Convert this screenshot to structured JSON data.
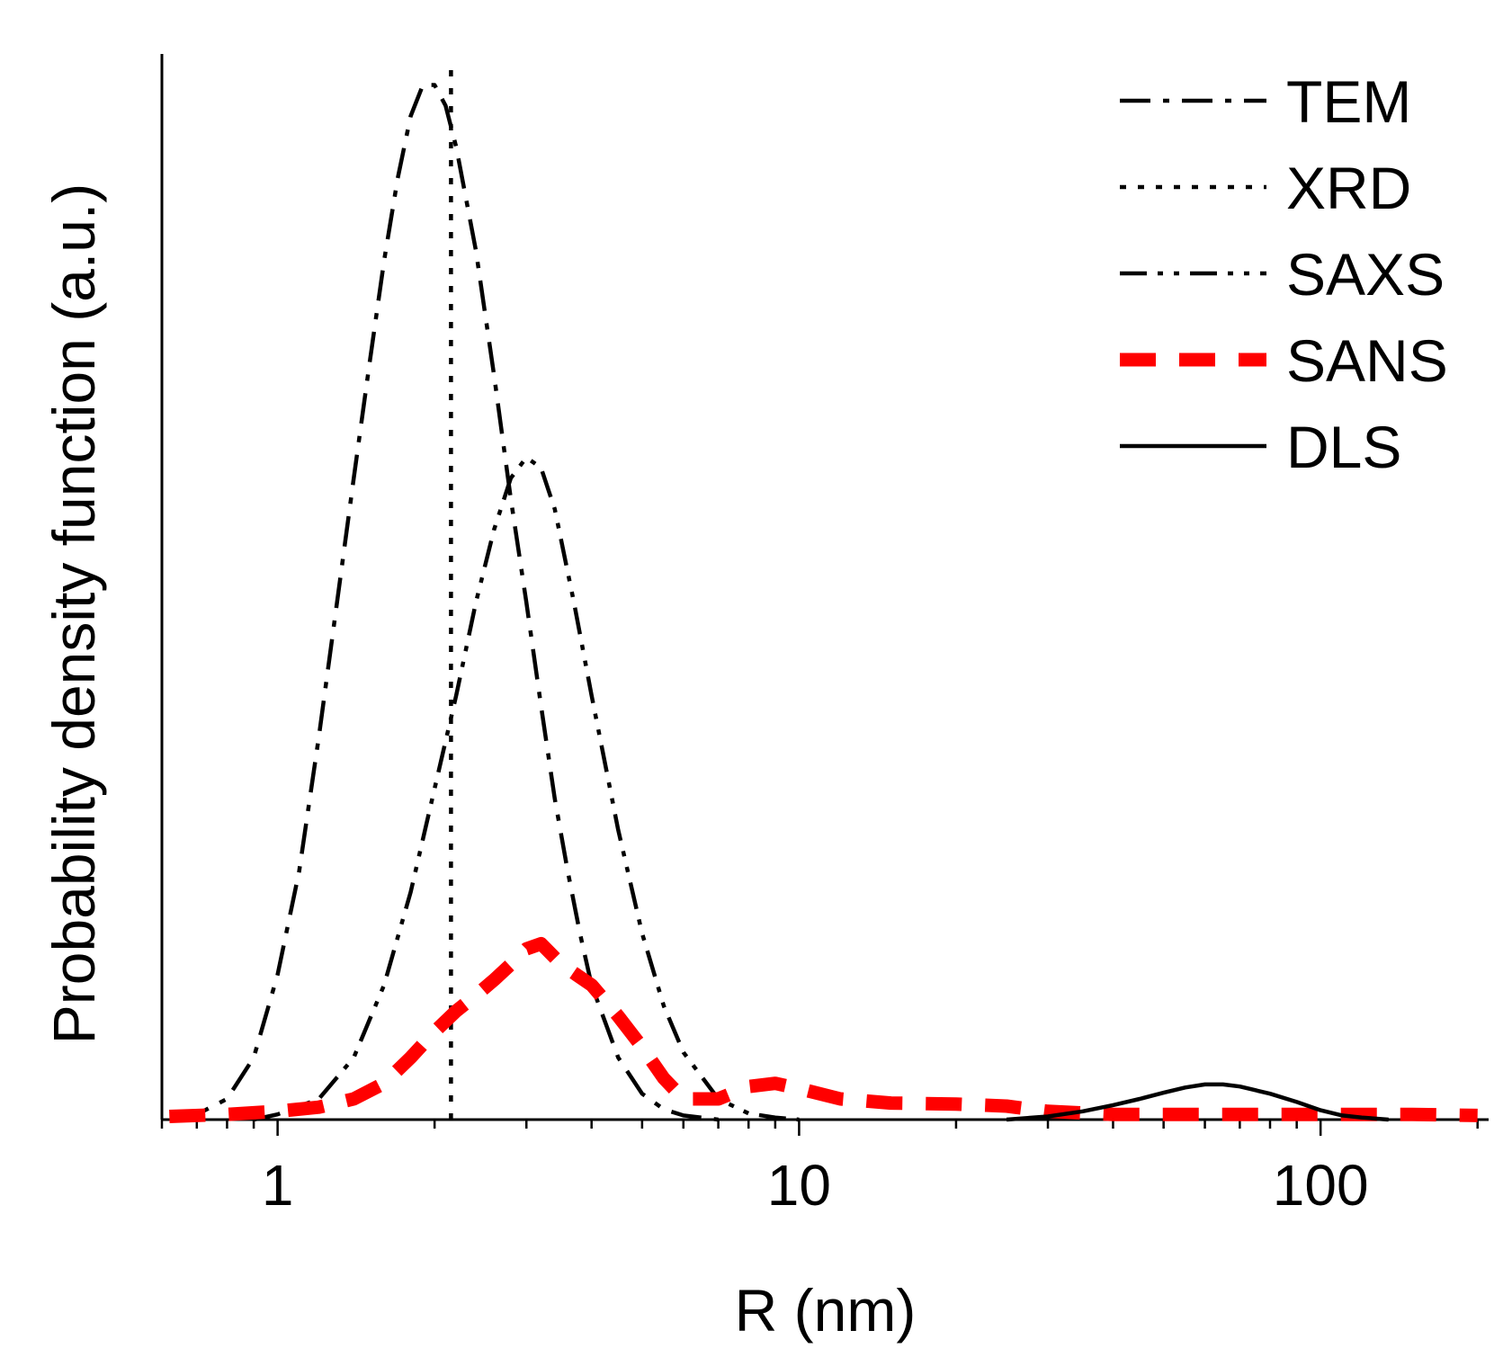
{
  "chart_data": {
    "type": "line",
    "title": "",
    "xlabel": "R (nm)",
    "ylabel": "Probability density function (a.u.)",
    "xscale": "log",
    "xlim": [
      0.6,
      210
    ],
    "ylim": [
      0,
      1.03
    ],
    "grid": false,
    "legend_position": "top-right",
    "x_ticks": [
      {
        "value": 1,
        "label": "1"
      },
      {
        "value": 10,
        "label": "10"
      },
      {
        "value": 100,
        "label": "100"
      }
    ],
    "series": [
      {
        "name": "TEM",
        "style": "dash-dot",
        "color": "#000000",
        "points": [
          [
            0.65,
            0.0
          ],
          [
            0.7,
            0.005
          ],
          [
            0.8,
            0.02
          ],
          [
            0.9,
            0.06
          ],
          [
            1.0,
            0.14
          ],
          [
            1.1,
            0.24
          ],
          [
            1.2,
            0.37
          ],
          [
            1.3,
            0.5
          ],
          [
            1.4,
            0.62
          ],
          [
            1.5,
            0.73
          ],
          [
            1.6,
            0.83
          ],
          [
            1.7,
            0.91
          ],
          [
            1.8,
            0.97
          ],
          [
            1.9,
            1.0
          ],
          [
            2.0,
            1.0
          ],
          [
            2.1,
            0.98
          ],
          [
            2.2,
            0.94
          ],
          [
            2.4,
            0.84
          ],
          [
            2.6,
            0.72
          ],
          [
            2.8,
            0.6
          ],
          [
            3.0,
            0.5
          ],
          [
            3.2,
            0.4
          ],
          [
            3.4,
            0.31
          ],
          [
            3.6,
            0.24
          ],
          [
            3.8,
            0.18
          ],
          [
            4.0,
            0.13
          ],
          [
            4.5,
            0.06
          ],
          [
            5.0,
            0.025
          ],
          [
            5.5,
            0.01
          ],
          [
            6.0,
            0.004
          ],
          [
            7.0,
            0.0
          ]
        ]
      },
      {
        "name": "XRD",
        "style": "dotted",
        "color": "#000000",
        "points": [
          [
            2.15,
            0.0
          ],
          [
            2.15,
            1.02
          ]
        ]
      },
      {
        "name": "SAXS",
        "style": "dash-dot-dot",
        "color": "#000000",
        "points": [
          [
            0.9,
            0.0
          ],
          [
            1.0,
            0.005
          ],
          [
            1.2,
            0.02
          ],
          [
            1.4,
            0.06
          ],
          [
            1.6,
            0.13
          ],
          [
            1.8,
            0.22
          ],
          [
            2.0,
            0.32
          ],
          [
            2.2,
            0.41
          ],
          [
            2.4,
            0.5
          ],
          [
            2.6,
            0.57
          ],
          [
            2.8,
            0.62
          ],
          [
            3.0,
            0.64
          ],
          [
            3.2,
            0.63
          ],
          [
            3.4,
            0.59
          ],
          [
            3.7,
            0.5
          ],
          [
            4.0,
            0.41
          ],
          [
            4.5,
            0.28
          ],
          [
            5.0,
            0.18
          ],
          [
            5.5,
            0.11
          ],
          [
            6.0,
            0.065
          ],
          [
            7.0,
            0.02
          ],
          [
            8.0,
            0.006
          ],
          [
            9.0,
            0.002
          ],
          [
            10.0,
            0.0
          ]
        ]
      },
      {
        "name": "SANS",
        "style": "dashed",
        "color": "#ff0000",
        "points": [
          [
            0.62,
            0.003
          ],
          [
            0.8,
            0.005
          ],
          [
            1.0,
            0.008
          ],
          [
            1.2,
            0.012
          ],
          [
            1.4,
            0.02
          ],
          [
            1.6,
            0.035
          ],
          [
            1.8,
            0.06
          ],
          [
            2.0,
            0.085
          ],
          [
            2.2,
            0.105
          ],
          [
            2.4,
            0.12
          ],
          [
            2.6,
            0.135
          ],
          [
            2.8,
            0.15
          ],
          [
            3.0,
            0.165
          ],
          [
            3.2,
            0.17
          ],
          [
            3.5,
            0.15
          ],
          [
            4.0,
            0.13
          ],
          [
            4.5,
            0.1
          ],
          [
            5.0,
            0.07
          ],
          [
            5.5,
            0.04
          ],
          [
            6.0,
            0.02
          ],
          [
            7.0,
            0.02
          ],
          [
            8.0,
            0.032
          ],
          [
            9.0,
            0.035
          ],
          [
            10.0,
            0.03
          ],
          [
            12.0,
            0.02
          ],
          [
            15.0,
            0.016
          ],
          [
            20.0,
            0.015
          ],
          [
            25.0,
            0.013
          ],
          [
            30.0,
            0.008
          ],
          [
            40.0,
            0.005
          ],
          [
            60.0,
            0.005
          ],
          [
            100.0,
            0.005
          ],
          [
            150.0,
            0.005
          ],
          [
            200.0,
            0.004
          ]
        ]
      },
      {
        "name": "DLS",
        "style": "solid",
        "color": "#000000",
        "points": [
          [
            25.0,
            0.0
          ],
          [
            30.0,
            0.003
          ],
          [
            35.0,
            0.008
          ],
          [
            40.0,
            0.014
          ],
          [
            45.0,
            0.02
          ],
          [
            50.0,
            0.026
          ],
          [
            55.0,
            0.031
          ],
          [
            60.0,
            0.034
          ],
          [
            65.0,
            0.034
          ],
          [
            70.0,
            0.032
          ],
          [
            80.0,
            0.025
          ],
          [
            90.0,
            0.017
          ],
          [
            100.0,
            0.009
          ],
          [
            110.0,
            0.004
          ],
          [
            120.0,
            0.002
          ],
          [
            135.0,
            0.0
          ]
        ]
      }
    ]
  }
}
